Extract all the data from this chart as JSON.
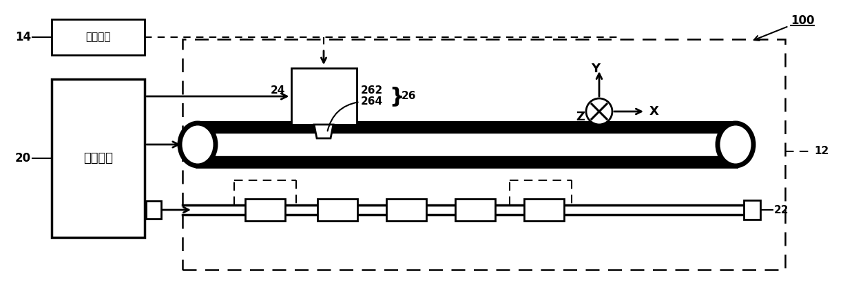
{
  "bg_color": "#ffffff",
  "line_color": "#000000",
  "label_20": "20",
  "label_14": "14",
  "label_22": "22",
  "label_12": "12",
  "label_100": "100",
  "label_24": "24",
  "label_26": "26",
  "label_264": "264",
  "label_262": "262",
  "text_control": "控制单元",
  "text_liquid": "液体容器",
  "axis_z": "Z",
  "axis_x": "X",
  "axis_y": "Y"
}
